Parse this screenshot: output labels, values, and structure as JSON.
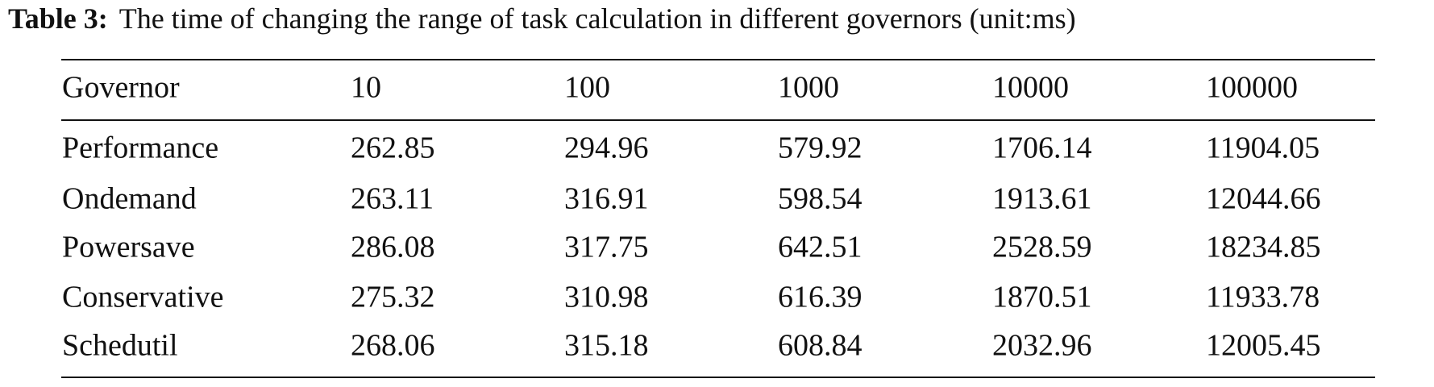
{
  "caption": {
    "label": "Table 3:",
    "text": "The time of changing the range of task calculation in different governors (unit:ms)"
  },
  "table": {
    "header": [
      "Governor",
      "10",
      "100",
      "1000",
      "10000",
      "100000"
    ],
    "rows": [
      [
        "Performance",
        "262.85",
        "294.96",
        "579.92",
        "1706.14",
        "11904.05"
      ],
      [
        "Ondemand",
        "263.11",
        "316.91",
        "598.54",
        "1913.61",
        "12044.66"
      ],
      [
        "Powersave",
        "286.08",
        "317.75",
        "642.51",
        "2528.59",
        "18234.85"
      ],
      [
        "Conservative",
        "275.32",
        "310.98",
        "616.39",
        "1870.51",
        "11933.78"
      ],
      [
        "Schedutil",
        "268.06",
        "315.18",
        "608.84",
        "2032.96",
        "12005.45"
      ]
    ]
  }
}
